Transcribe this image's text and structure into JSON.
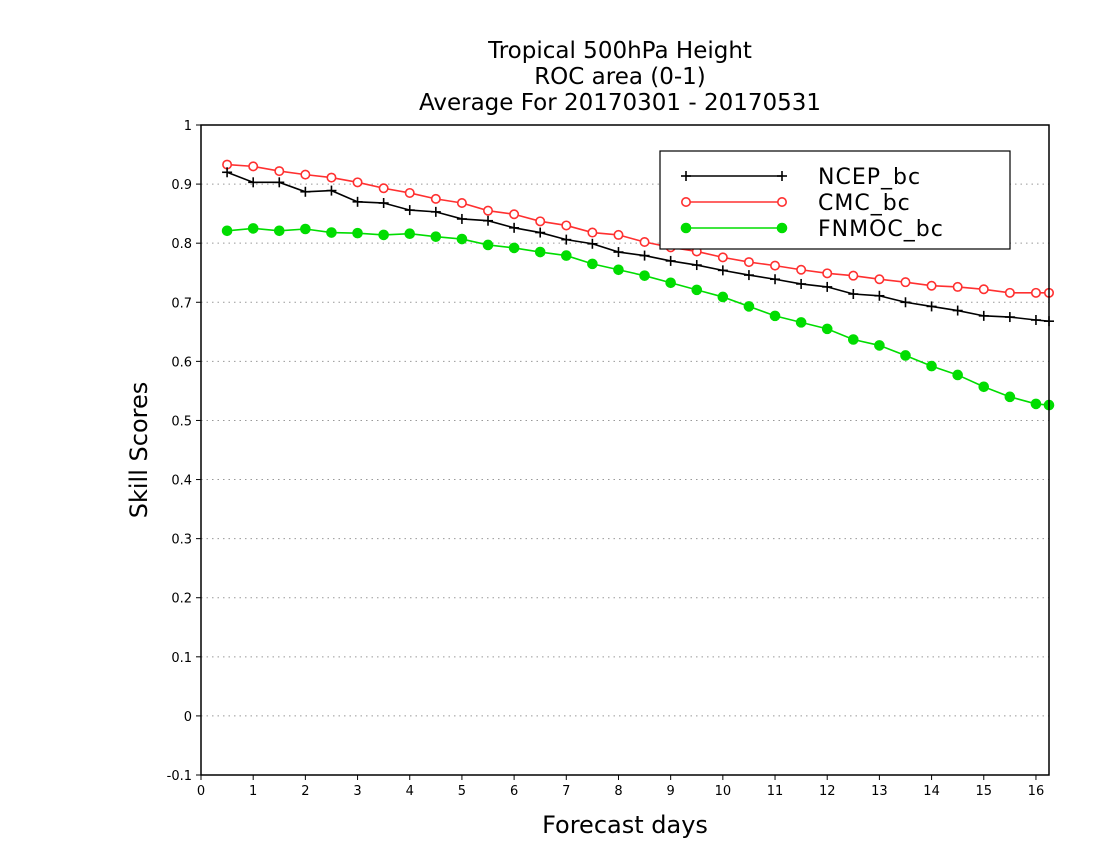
{
  "chart_data": {
    "type": "line",
    "title": [
      "Tropical 500hPa Height",
      "ROC area (0-1)",
      "Average For 20170301 - 20170531"
    ],
    "xlabel": "Forecast days",
    "ylabel": "Skill Scores",
    "xlim": [
      0,
      16.25
    ],
    "ylim": [
      -0.1,
      1
    ],
    "xticks": [
      0,
      1,
      2,
      3,
      4,
      5,
      6,
      7,
      8,
      9,
      10,
      11,
      12,
      13,
      14,
      15,
      16
    ],
    "yticks": [
      -0.1,
      0,
      0.1,
      0.2,
      0.3,
      0.4,
      0.5,
      0.6,
      0.7,
      0.8,
      0.9,
      1
    ],
    "ytick_labels": [
      "-0.1",
      "0",
      "0.1",
      "0.2",
      "0.3",
      "0.4",
      "0.5",
      "0.6",
      "0.7",
      "0.8",
      "0.9",
      "1"
    ],
    "grid": "horizontal dotted",
    "legend_position": "top-right",
    "x": [
      0.5,
      1,
      1.5,
      2,
      2.5,
      3,
      3.5,
      4,
      4.5,
      5,
      5.5,
      6,
      6.5,
      7,
      7.5,
      8,
      8.5,
      9,
      9.5,
      10,
      10.5,
      11,
      11.5,
      12,
      12.5,
      13,
      13.5,
      14,
      14.5,
      15,
      15.5,
      16,
      16.25
    ],
    "series": [
      {
        "name": "NCEP_bc",
        "color": "#000000",
        "marker": "plus",
        "values": [
          0.92,
          0.903,
          0.903,
          0.887,
          0.889,
          0.87,
          0.868,
          0.856,
          0.853,
          0.841,
          0.838,
          0.826,
          0.818,
          0.806,
          0.799,
          0.785,
          0.779,
          0.77,
          0.763,
          0.754,
          0.746,
          0.739,
          0.731,
          0.726,
          0.714,
          0.711,
          0.7,
          0.693,
          0.686,
          0.677,
          0.675,
          0.67,
          0.668
        ]
      },
      {
        "name": "CMC_bc",
        "color": "#ff3030",
        "marker": "open-circle",
        "values": [
          0.933,
          0.93,
          0.922,
          0.916,
          0.911,
          0.903,
          0.893,
          0.885,
          0.875,
          0.868,
          0.855,
          0.849,
          0.837,
          0.83,
          0.818,
          0.814,
          0.802,
          0.793,
          0.786,
          0.776,
          0.768,
          0.762,
          0.755,
          0.749,
          0.745,
          0.739,
          0.734,
          0.728,
          0.726,
          0.722,
          0.716,
          0.716,
          0.716
        ]
      },
      {
        "name": "FNMOC_bc",
        "color": "#00dd00",
        "marker": "filled-circle",
        "values": [
          0.821,
          0.825,
          0.821,
          0.824,
          0.818,
          0.817,
          0.814,
          0.816,
          0.811,
          0.807,
          0.797,
          0.792,
          0.785,
          0.779,
          0.765,
          0.755,
          0.745,
          0.733,
          0.721,
          0.709,
          0.693,
          0.677,
          0.666,
          0.655,
          0.637,
          0.627,
          0.61,
          0.592,
          0.577,
          0.557,
          0.54,
          0.528,
          0.526
        ]
      }
    ]
  }
}
